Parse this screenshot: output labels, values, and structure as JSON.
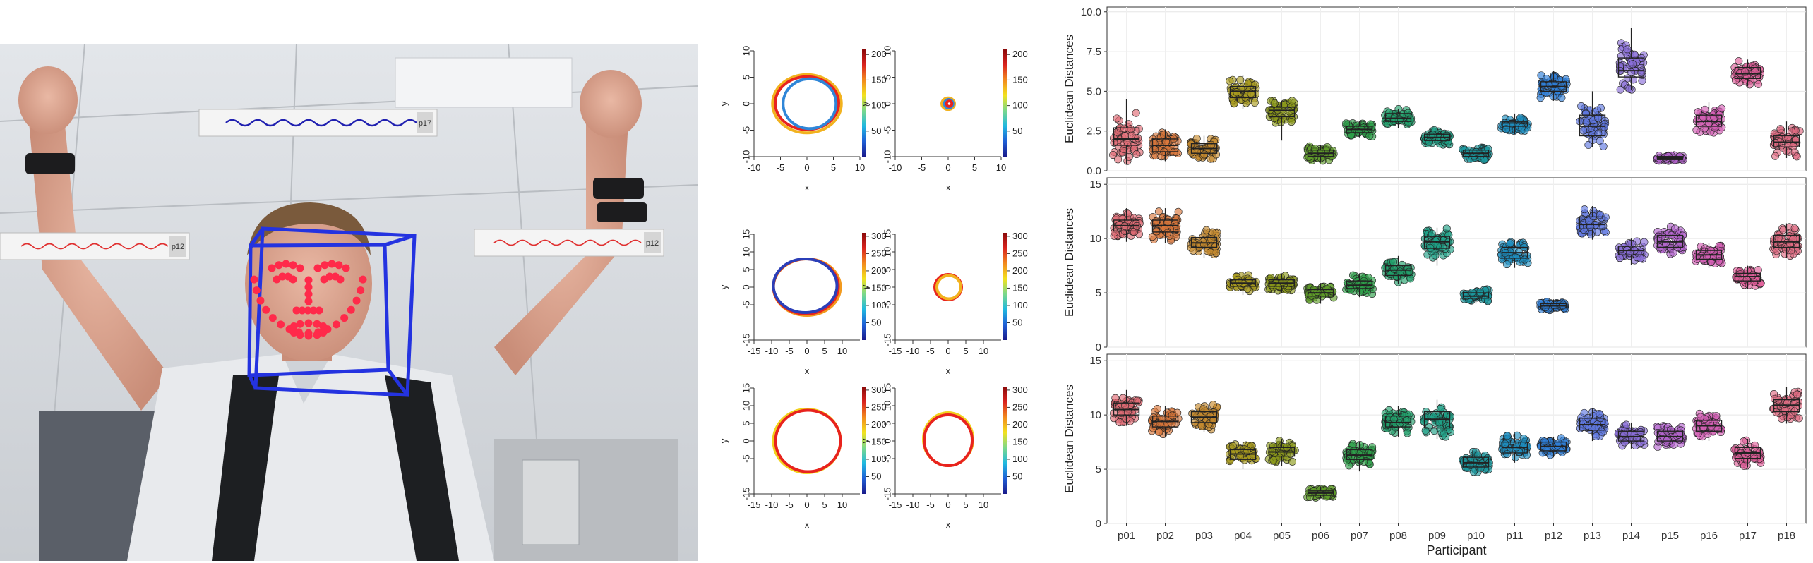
{
  "photo": {
    "legend_tags": [
      "p17",
      "p12",
      "p12"
    ]
  },
  "chart_data": [
    {
      "type": "line",
      "id": "traj-r1-a",
      "xlabel": "x",
      "ylabel": "y",
      "xlim": [
        -10,
        10
      ],
      "ylim": [
        -10,
        10
      ],
      "xticks": [
        -10,
        -5,
        0,
        5,
        10
      ],
      "yticks": [
        -10,
        -5,
        0,
        5,
        10
      ],
      "colorbar_ticks": [
        50,
        100,
        150,
        200
      ],
      "colorbar_range": [
        0,
        210
      ],
      "circles": [
        {
          "cx": 0,
          "cy": 0,
          "rx": 6.5,
          "ry": 5.5,
          "color": "#f2b21e"
        },
        {
          "cx": 0,
          "cy": 0.1,
          "rx": 6.0,
          "ry": 5.0,
          "color": "#e8231e"
        },
        {
          "cx": 0.5,
          "cy": 0,
          "rx": 5.0,
          "ry": 4.7,
          "color": "#2f86d8"
        }
      ]
    },
    {
      "type": "line",
      "id": "traj-r1-b",
      "xlabel": "x",
      "ylabel": "y",
      "xlim": [
        -10,
        10
      ],
      "ylim": [
        -10,
        10
      ],
      "xticks": [
        -10,
        -5,
        0,
        5,
        10
      ],
      "yticks": [
        -10,
        -5,
        0,
        5,
        10
      ],
      "colorbar_ticks": [
        50,
        100,
        150,
        200
      ],
      "colorbar_range": [
        0,
        210
      ],
      "circles": [
        {
          "cx": 0,
          "cy": 0,
          "rx": 1.2,
          "ry": 1.1,
          "color": "#f2b21e"
        },
        {
          "cx": 0.1,
          "cy": 0,
          "rx": 0.8,
          "ry": 0.8,
          "color": "#2f86d8"
        },
        {
          "cx": 0.2,
          "cy": 0,
          "rx": 0.5,
          "ry": 0.5,
          "color": "#e8231e"
        }
      ]
    },
    {
      "type": "line",
      "id": "traj-r2-a",
      "xlabel": "x",
      "ylabel": "y",
      "xlim": [
        -15,
        15
      ],
      "ylim": [
        -15,
        15
      ],
      "xticks": [
        -15,
        -10,
        -5,
        0,
        5,
        10
      ],
      "yticks": [
        -15,
        -5,
        0,
        5,
        10,
        15
      ],
      "colorbar_ticks": [
        50,
        100,
        150,
        200,
        250,
        300
      ],
      "colorbar_range": [
        0,
        310
      ],
      "circles": [
        {
          "cx": 0,
          "cy": 0,
          "rx": 9.5,
          "ry": 8.0,
          "color": "#f29a1e"
        },
        {
          "cx": -0.3,
          "cy": 0.2,
          "rx": 9.2,
          "ry": 7.8,
          "color": "#e8231e"
        },
        {
          "cx": -0.5,
          "cy": 0.4,
          "rx": 9.0,
          "ry": 7.6,
          "color": "#2b3fb8"
        }
      ]
    },
    {
      "type": "line",
      "id": "traj-r2-b",
      "xlabel": "x",
      "ylabel": "y",
      "xlim": [
        -15,
        15
      ],
      "ylim": [
        -15,
        15
      ],
      "xticks": [
        -15,
        -10,
        -5,
        0,
        5,
        10
      ],
      "yticks": [
        -15,
        -5,
        0,
        5,
        10,
        15
      ],
      "colorbar_ticks": [
        50,
        100,
        150,
        200,
        250,
        300
      ],
      "colorbar_range": [
        0,
        310
      ],
      "circles": [
        {
          "cx": 0,
          "cy": 0,
          "rx": 3.8,
          "ry": 3.6,
          "color": "#e8231e"
        },
        {
          "cx": 0.2,
          "cy": 0,
          "rx": 3.4,
          "ry": 3.3,
          "color": "#f2b21e"
        }
      ]
    },
    {
      "type": "line",
      "id": "traj-r3-a",
      "xlabel": "x",
      "ylabel": "y",
      "xlim": [
        -15,
        15
      ],
      "ylim": [
        -15,
        15
      ],
      "xticks": [
        -15,
        -10,
        -5,
        0,
        5,
        10
      ],
      "yticks": [
        -15,
        -5,
        0,
        5,
        10,
        15
      ],
      "colorbar_ticks": [
        50,
        100,
        150,
        200,
        250,
        300
      ],
      "colorbar_range": [
        0,
        310
      ],
      "circles": [
        {
          "cx": 0,
          "cy": 0,
          "rx": 9.5,
          "ry": 9.0,
          "color": "#f2d21e"
        },
        {
          "cx": 0.3,
          "cy": 0,
          "rx": 9.2,
          "ry": 8.7,
          "color": "#e8231e"
        }
      ]
    },
    {
      "type": "line",
      "id": "traj-r3-b",
      "xlabel": "x",
      "ylabel": "y",
      "xlim": [
        -15,
        15
      ],
      "ylim": [
        -15,
        15
      ],
      "xticks": [
        -15,
        -10,
        -5,
        0,
        5,
        10
      ],
      "yticks": [
        -15,
        -5,
        0,
        5,
        10,
        15
      ],
      "colorbar_ticks": [
        50,
        100,
        150,
        200,
        250,
        300
      ],
      "colorbar_range": [
        0,
        310
      ],
      "circles": [
        {
          "cx": 0,
          "cy": 0.5,
          "rx": 7.0,
          "ry": 7.5,
          "color": "#f2d21e"
        },
        {
          "cx": 0,
          "cy": 0.2,
          "rx": 6.8,
          "ry": 7.2,
          "color": "#e8231e"
        }
      ]
    },
    {
      "type": "box",
      "id": "box-top",
      "ylabel": "Euclidean Distances",
      "ylim": [
        0,
        10.3
      ],
      "yticks": [
        0.0,
        2.5,
        5.0,
        7.5,
        10.0
      ],
      "ytick_labels": [
        "0.0",
        "2.5",
        "5.0",
        "7.5",
        "10.0"
      ],
      "categories": [
        "p01",
        "p02",
        "p03",
        "p04",
        "p05",
        "p06",
        "p07",
        "p08",
        "p09",
        "p10",
        "p11",
        "p12",
        "p13",
        "p14",
        "p15",
        "p16",
        "p17",
        "p18"
      ],
      "boxes": [
        {
          "min": 0.4,
          "q1": 1.6,
          "median": 2.0,
          "q3": 2.7,
          "max": 4.5
        },
        {
          "min": 0.6,
          "q1": 1.2,
          "median": 1.6,
          "q3": 2.0,
          "max": 2.6
        },
        {
          "min": 0.6,
          "q1": 1.1,
          "median": 1.4,
          "q3": 1.7,
          "max": 2.2
        },
        {
          "min": 3.9,
          "q1": 4.6,
          "median": 5.0,
          "q3": 5.3,
          "max": 6.0
        },
        {
          "min": 1.9,
          "q1": 3.4,
          "median": 3.8,
          "q3": 4.0,
          "max": 4.4
        },
        {
          "min": 0.5,
          "q1": 0.9,
          "median": 1.1,
          "q3": 1.3,
          "max": 1.6
        },
        {
          "min": 2.1,
          "q1": 2.4,
          "median": 2.6,
          "q3": 2.8,
          "max": 3.1
        },
        {
          "min": 2.7,
          "q1": 3.1,
          "median": 3.3,
          "q3": 3.6,
          "max": 3.9
        },
        {
          "min": 1.5,
          "q1": 1.9,
          "median": 2.1,
          "q3": 2.3,
          "max": 2.6
        },
        {
          "min": 0.6,
          "q1": 0.9,
          "median": 1.1,
          "q3": 1.3,
          "max": 1.6
        },
        {
          "min": 2.3,
          "q1": 2.8,
          "median": 3.0,
          "q3": 3.1,
          "max": 3.6
        },
        {
          "min": 4.4,
          "q1": 5.0,
          "median": 5.3,
          "q3": 5.6,
          "max": 6.3
        },
        {
          "min": 1.5,
          "q1": 2.2,
          "median": 2.8,
          "q3": 3.5,
          "max": 5.0
        },
        {
          "min": 5.1,
          "q1": 5.9,
          "median": 6.3,
          "q3": 7.1,
          "max": 9.0
        },
        {
          "min": 0.6,
          "q1": 0.7,
          "median": 0.8,
          "q3": 0.9,
          "max": 1.0
        },
        {
          "min": 2.2,
          "q1": 2.8,
          "median": 3.1,
          "q3": 3.5,
          "max": 4.3
        },
        {
          "min": 5.3,
          "q1": 5.8,
          "median": 6.1,
          "q3": 6.5,
          "max": 7.0
        },
        {
          "min": 0.8,
          "q1": 1.5,
          "median": 1.8,
          "q3": 2.2,
          "max": 3.1
        }
      ]
    },
    {
      "type": "box",
      "id": "box-mid",
      "ylabel": "Euclidean Distances",
      "ylim": [
        0,
        15.6
      ],
      "yticks": [
        0,
        5,
        10,
        15
      ],
      "ytick_labels": [
        "0",
        "5",
        "10",
        "15"
      ],
      "categories": [
        "p01",
        "p02",
        "p03",
        "p04",
        "p05",
        "p06",
        "p07",
        "p08",
        "p09",
        "p10",
        "p11",
        "p12",
        "p13",
        "p14",
        "p15",
        "p16",
        "p17",
        "p18"
      ],
      "boxes": [
        {
          "min": 9.7,
          "q1": 10.7,
          "median": 11.2,
          "q3": 11.7,
          "max": 12.8
        },
        {
          "min": 9.6,
          "q1": 10.6,
          "median": 11.2,
          "q3": 11.7,
          "max": 12.8
        },
        {
          "min": 8.2,
          "q1": 9.2,
          "median": 9.6,
          "q3": 10.1,
          "max": 11.0
        },
        {
          "min": 4.8,
          "q1": 5.6,
          "median": 5.9,
          "q3": 6.2,
          "max": 6.7
        },
        {
          "min": 5.0,
          "q1": 5.6,
          "median": 5.9,
          "q3": 6.2,
          "max": 6.8
        },
        {
          "min": 4.0,
          "q1": 4.7,
          "median": 5.0,
          "q3": 5.3,
          "max": 5.9
        },
        {
          "min": 4.6,
          "q1": 5.4,
          "median": 5.7,
          "q3": 6.1,
          "max": 6.8
        },
        {
          "min": 5.8,
          "q1": 6.6,
          "median": 7.1,
          "q3": 7.5,
          "max": 8.4
        },
        {
          "min": 7.5,
          "q1": 9.1,
          "median": 9.7,
          "q3": 10.2,
          "max": 11.0
        },
        {
          "min": 4.0,
          "q1": 4.5,
          "median": 4.7,
          "q3": 5.0,
          "max": 5.5
        },
        {
          "min": 7.3,
          "q1": 8.2,
          "median": 8.7,
          "q3": 9.2,
          "max": 9.9
        },
        {
          "min": 3.3,
          "q1": 3.6,
          "median": 3.8,
          "q3": 4.0,
          "max": 4.4
        },
        {
          "min": 9.9,
          "q1": 10.9,
          "median": 11.3,
          "q3": 12.0,
          "max": 13.0
        },
        {
          "min": 7.6,
          "q1": 8.5,
          "median": 8.9,
          "q3": 9.3,
          "max": 10.0
        },
        {
          "min": 8.2,
          "q1": 9.2,
          "median": 9.7,
          "q3": 10.3,
          "max": 11.2
        },
        {
          "min": 7.3,
          "q1": 8.1,
          "median": 8.5,
          "q3": 8.9,
          "max": 9.6
        },
        {
          "min": 5.4,
          "q1": 6.1,
          "median": 6.5,
          "q3": 6.8,
          "max": 7.5
        },
        {
          "min": 8.2,
          "q1": 9.2,
          "median": 9.7,
          "q3": 10.3,
          "max": 11.4
        }
      ]
    },
    {
      "type": "box",
      "id": "box-bot",
      "ylabel": "Euclidean Distances",
      "ylim": [
        0,
        15.6
      ],
      "yticks": [
        0,
        5,
        10,
        15
      ],
      "ytick_labels": [
        "0",
        "5",
        "10",
        "15"
      ],
      "xlabel": "Participant",
      "categories": [
        "p01",
        "p02",
        "p03",
        "p04",
        "p05",
        "p06",
        "p07",
        "p08",
        "p09",
        "p10",
        "p11",
        "p12",
        "p13",
        "p14",
        "p15",
        "p16",
        "p17",
        "p18"
      ],
      "boxes": [
        {
          "min": 9.0,
          "q1": 10.0,
          "median": 10.5,
          "q3": 11.1,
          "max": 12.3
        },
        {
          "min": 8.0,
          "q1": 8.9,
          "median": 9.4,
          "q3": 9.9,
          "max": 10.8
        },
        {
          "min": 8.4,
          "q1": 9.3,
          "median": 9.8,
          "q3": 10.3,
          "max": 11.1
        },
        {
          "min": 5.0,
          "q1": 5.9,
          "median": 6.4,
          "q3": 6.8,
          "max": 7.5
        },
        {
          "min": 5.3,
          "q1": 6.2,
          "median": 6.6,
          "q3": 7.0,
          "max": 7.8
        },
        {
          "min": 2.3,
          "q1": 2.6,
          "median": 2.8,
          "q3": 3.0,
          "max": 3.4
        },
        {
          "min": 4.8,
          "q1": 5.9,
          "median": 6.3,
          "q3": 6.8,
          "max": 7.5
        },
        {
          "min": 8.0,
          "q1": 8.9,
          "median": 9.3,
          "q3": 9.9,
          "max": 10.8
        },
        {
          "min": 7.8,
          "q1": 8.8,
          "median": 9.6,
          "q3": 10.3,
          "max": 11.4
        },
        {
          "min": 4.6,
          "q1": 5.2,
          "median": 5.6,
          "q3": 6.1,
          "max": 6.9
        },
        {
          "min": 5.6,
          "q1": 6.5,
          "median": 7.0,
          "q3": 7.5,
          "max": 8.3
        },
        {
          "min": 6.1,
          "q1": 6.7,
          "median": 7.1,
          "q3": 7.5,
          "max": 8.0
        },
        {
          "min": 7.6,
          "q1": 8.6,
          "median": 9.1,
          "q3": 9.7,
          "max": 10.6
        },
        {
          "min": 6.9,
          "q1": 7.6,
          "median": 8.0,
          "q3": 8.5,
          "max": 9.3
        },
        {
          "min": 6.9,
          "q1": 7.6,
          "median": 8.0,
          "q3": 8.5,
          "max": 9.3
        },
        {
          "min": 7.6,
          "q1": 8.5,
          "median": 9.0,
          "q3": 9.5,
          "max": 10.4
        },
        {
          "min": 5.2,
          "q1": 6.0,
          "median": 6.5,
          "q3": 7.0,
          "max": 7.8
        },
        {
          "min": 9.2,
          "q1": 10.3,
          "median": 10.9,
          "q3": 11.4,
          "max": 12.6
        }
      ]
    }
  ],
  "colors": {
    "participants": [
      "#e06c75",
      "#d9773a",
      "#c68a2e",
      "#a99b1e",
      "#8c9a1a",
      "#5f9c2a",
      "#2ea04a",
      "#22a06b",
      "#1ea086",
      "#1b9aa0",
      "#1f8fc0",
      "#2f7fd8",
      "#5f78e0",
      "#8a6fd8",
      "#b565d0",
      "#d460b5",
      "#e0609a",
      "#e06c82"
    ]
  }
}
